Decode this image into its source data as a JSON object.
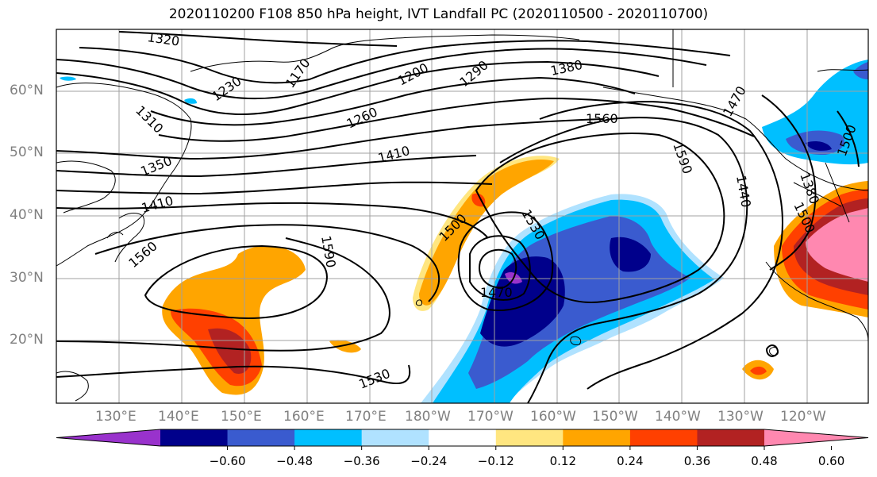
{
  "title": "2020110200 F108 850 hPa height, IVT Landfall PC (2020110500 - 2020110700)",
  "lat_labels": [
    "60°N",
    "50°N",
    "40°N",
    "30°N",
    "20°N"
  ],
  "lon_labels": [
    "130°E",
    "140°E",
    "150°E",
    "160°E",
    "170°E",
    "180°W",
    "170°W",
    "160°W",
    "150°W",
    "140°W",
    "130°W",
    "120°W"
  ],
  "contour_labels": [
    "1320",
    "1230",
    "1170",
    "1200",
    "1290",
    "1380",
    "1310",
    "1260",
    "1560",
    "1470",
    "1590",
    "1350",
    "1410",
    "1500",
    "1410",
    "1440",
    "1500",
    "1530",
    "1380",
    "1590",
    "1560",
    "1470",
    "1530",
    "1500"
  ],
  "colorbar": {
    "ticks": [
      "−0.60",
      "−0.48",
      "−0.36",
      "−0.24",
      "−0.12",
      "0.12",
      "0.24",
      "0.36",
      "0.48",
      "0.60"
    ],
    "colors": [
      "#9932cc",
      "#00008b",
      "#3a5bcf",
      "#00bfff",
      "#b0e2ff",
      "#ffffff",
      "#ffe680",
      "#ffa500",
      "#ff4000",
      "#b22222",
      "#ff88b0"
    ]
  }
}
